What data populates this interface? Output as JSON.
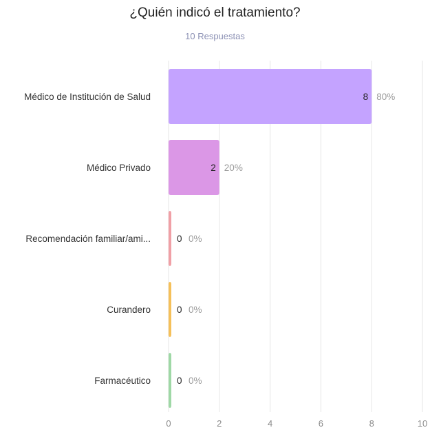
{
  "chart_data": {
    "type": "bar",
    "orientation": "horizontal",
    "title": "¿Quién indicó el tratamiento?",
    "subtitle": "10 Respuestas",
    "categories": [
      "Médico de Institución de Salud",
      "Médico Privado",
      "Recomendación familiar/ami...",
      "Curandero",
      "Farmacéutico"
    ],
    "values": [
      8,
      2,
      0,
      0,
      0
    ],
    "percent_labels": [
      "80%",
      "20%",
      "0%",
      "0%",
      "0%"
    ],
    "colors": [
      "#c4a3ff",
      "#db97e6",
      "#f0a0a6",
      "#f5c05a",
      "#9fd8a6"
    ],
    "xlim": [
      0,
      10
    ],
    "xticks": [
      0,
      2,
      4,
      6,
      8,
      10
    ],
    "grid": true,
    "legend": "none"
  }
}
